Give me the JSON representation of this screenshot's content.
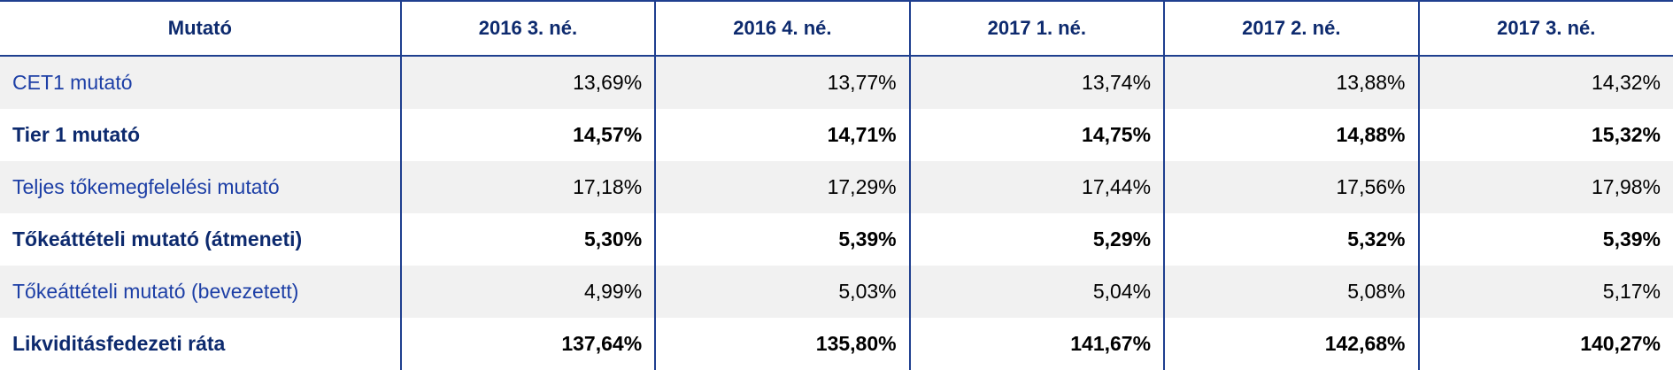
{
  "table": {
    "header": [
      "Mutató",
      "2016 3. né.",
      "2016 4. né.",
      "2017 1. né.",
      "2017 2. né.",
      "2017 3. né."
    ],
    "rows": [
      [
        "CET1 mutató",
        "13,69%",
        "13,77%",
        "13,74%",
        "13,88%",
        "14,32%"
      ],
      [
        "Tier 1 mutató",
        "14,57%",
        "14,71%",
        "14,75%",
        "14,88%",
        "15,32%"
      ],
      [
        "Teljes tőkemegfelelési mutató",
        "17,18%",
        "17,29%",
        "17,44%",
        "17,56%",
        "17,98%"
      ],
      [
        "Tőkeáttételi mutató (átmeneti)",
        "5,30%",
        "5,39%",
        "5,29%",
        "5,32%",
        "5,39%"
      ],
      [
        "Tőkeáttételi mutató (bevezetett)",
        "4,99%",
        "5,03%",
        "5,04%",
        "5,08%",
        "5,17%"
      ],
      [
        "Likviditásfedezeti ráta",
        "137,64%",
        "135,80%",
        "141,67%",
        "142,68%",
        "140,27%"
      ]
    ]
  }
}
